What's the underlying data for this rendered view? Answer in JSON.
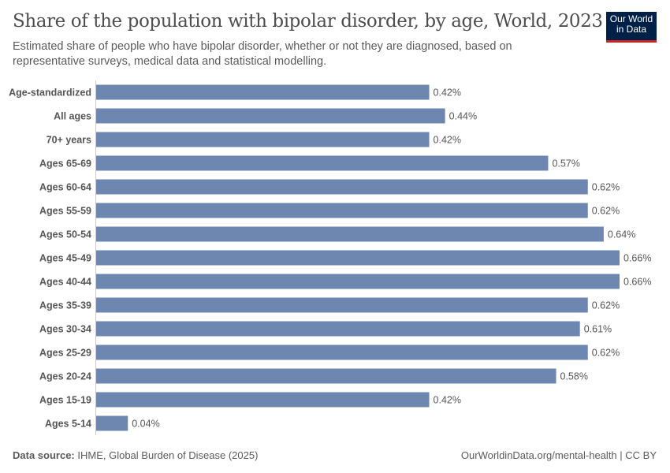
{
  "header": {
    "title": "Share of the population with bipolar disorder, by age, World, 2023",
    "subtitle": "Estimated share of people who have bipolar disorder, whether or not they are diagnosed, based on representative surveys, medical data and statistical modelling.",
    "logo": "Our World in Data"
  },
  "footer": {
    "source_label": "Data source:",
    "source": "IHME, Global Burden of Disease (2025)",
    "right": "OurWorldinData.org/mental-health | CC BY"
  },
  "chart_data": {
    "type": "bar",
    "orientation": "horizontal",
    "unit": "%",
    "bar_color": "#6d87b0",
    "categories": [
      "Age-standardized",
      "All ages",
      "70+ years",
      "Ages 65-69",
      "Ages 60-64",
      "Ages 55-59",
      "Ages 50-54",
      "Ages 45-49",
      "Ages 40-44",
      "Ages 35-39",
      "Ages 30-34",
      "Ages 25-29",
      "Ages 20-24",
      "Ages 15-19",
      "Ages 5-14"
    ],
    "values": [
      0.42,
      0.44,
      0.42,
      0.57,
      0.62,
      0.62,
      0.64,
      0.66,
      0.66,
      0.62,
      0.61,
      0.62,
      0.58,
      0.42,
      0.04
    ],
    "labels": [
      "0.42%",
      "0.44%",
      "0.42%",
      "0.57%",
      "0.62%",
      "0.62%",
      "0.64%",
      "0.66%",
      "0.66%",
      "0.62%",
      "0.61%",
      "0.62%",
      "0.58%",
      "0.42%",
      "0.04%"
    ],
    "xlim": [
      0,
      0.66
    ]
  }
}
